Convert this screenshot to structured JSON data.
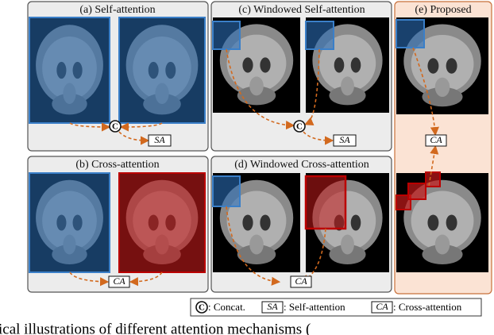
{
  "panels": [
    {
      "title": "(a) Self-attention",
      "ops": [
        "C",
        "SA"
      ]
    },
    {
      "title": "(b) Cross-attention",
      "ops": [
        "CA"
      ]
    },
    {
      "title": "(c) Windowed Self-attention",
      "ops": [
        "C",
        "SA"
      ]
    },
    {
      "title": "(d) Windowed Cross-attention",
      "ops": [
        "CA"
      ]
    },
    {
      "title": "(e) Proposed",
      "ops": [
        "CA"
      ]
    }
  ],
  "legend": [
    {
      "symbol": "C",
      "label": ": Concat."
    },
    {
      "symbol": "SA",
      "label": ": Self-attention"
    },
    {
      "symbol": "CA",
      "label": ": Cross-attention"
    }
  ],
  "caption": "ical illustrations of different attention mechanisms ("
}
